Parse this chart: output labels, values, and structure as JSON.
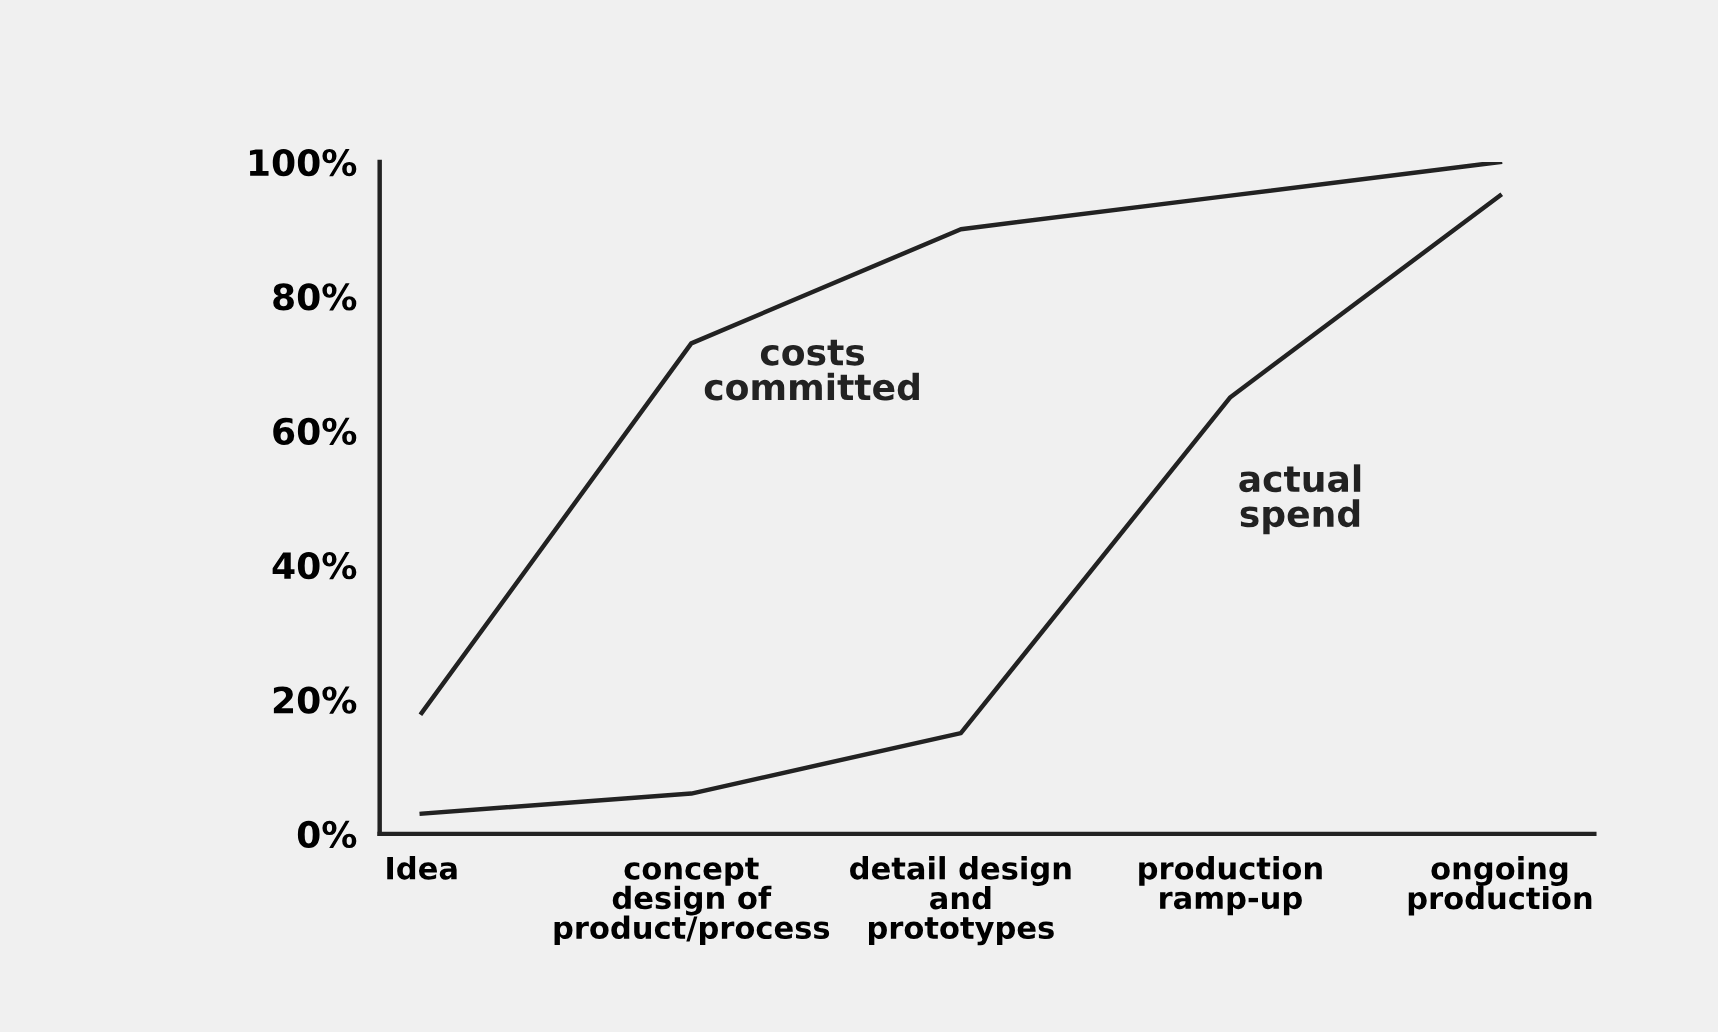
{
  "chart_data": {
    "type": "line",
    "categories": [
      "Idea",
      "concept\ndesign of\nproduct/process",
      "detail design\nand\nprototypes",
      "production\nramp-up",
      "ongoing\nproduction"
    ],
    "series": [
      {
        "name": "costs\ncommitted",
        "color": "#222222",
        "values": [
          18,
          73,
          90,
          95,
          100
        ]
      },
      {
        "name": "actual\nspend",
        "color": "#222222",
        "values": [
          3,
          6,
          15,
          65,
          95
        ]
      }
    ],
    "ylim": [
      0,
      100
    ],
    "yticks": [
      {
        "value": 0,
        "label": "0%"
      },
      {
        "value": 20,
        "label": "20%"
      },
      {
        "value": 40,
        "label": "40%"
      },
      {
        "value": 60,
        "label": "60%"
      },
      {
        "value": 80,
        "label": "80%"
      },
      {
        "value": 100,
        "label": "100%"
      }
    ],
    "grid": false,
    "legend": false,
    "marker": "none",
    "line_style": "solid"
  }
}
